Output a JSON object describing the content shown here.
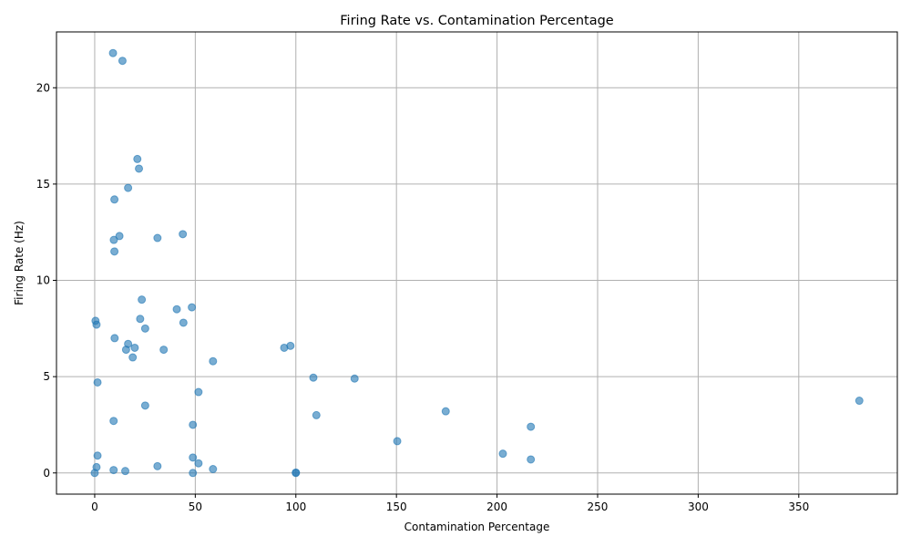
{
  "chart_data": {
    "type": "scatter",
    "title": "Firing Rate vs. Contamination Percentage",
    "xlabel": "Contamination Percentage",
    "ylabel": "Firing Rate (Hz)",
    "xlim": [
      -19,
      399
    ],
    "ylim": [
      -1.1,
      22.9
    ],
    "xticks": [
      0,
      50,
      100,
      150,
      200,
      250,
      300,
      350
    ],
    "yticks": [
      0,
      5,
      10,
      15,
      20
    ],
    "grid": true,
    "color": "#1f77b4",
    "points": [
      [
        9.1,
        21.8
      ],
      [
        13.8,
        21.4
      ],
      [
        21.2,
        16.3
      ],
      [
        22.0,
        15.8
      ],
      [
        16.6,
        14.8
      ],
      [
        9.8,
        14.2
      ],
      [
        43.8,
        12.4
      ],
      [
        12.3,
        12.3
      ],
      [
        31.2,
        12.2
      ],
      [
        9.5,
        12.1
      ],
      [
        9.8,
        11.5
      ],
      [
        23.4,
        9.0
      ],
      [
        48.3,
        8.6
      ],
      [
        40.8,
        8.5
      ],
      [
        22.6,
        8.0
      ],
      [
        0.4,
        7.9
      ],
      [
        0.9,
        7.7
      ],
      [
        44.1,
        7.8
      ],
      [
        25.1,
        7.5
      ],
      [
        9.9,
        7.0
      ],
      [
        16.6,
        6.7
      ],
      [
        19.9,
        6.5
      ],
      [
        15.6,
        6.4
      ],
      [
        34.3,
        6.4
      ],
      [
        94.2,
        6.5
      ],
      [
        97.3,
        6.6
      ],
      [
        18.9,
        6.0
      ],
      [
        58.8,
        5.8
      ],
      [
        108.7,
        4.95
      ],
      [
        129.2,
        4.9
      ],
      [
        1.4,
        4.7
      ],
      [
        51.6,
        4.2
      ],
      [
        380.1,
        3.75
      ],
      [
        25.1,
        3.5
      ],
      [
        174.5,
        3.2
      ],
      [
        110.2,
        3.0
      ],
      [
        9.4,
        2.7
      ],
      [
        48.8,
        2.5
      ],
      [
        216.8,
        2.4
      ],
      [
        150.4,
        1.65
      ],
      [
        202.9,
        1.0
      ],
      [
        1.4,
        0.9
      ],
      [
        48.8,
        0.8
      ],
      [
        216.8,
        0.7
      ],
      [
        51.6,
        0.5
      ],
      [
        31.2,
        0.35
      ],
      [
        0.9,
        0.3
      ],
      [
        58.8,
        0.2
      ],
      [
        9.4,
        0.15
      ],
      [
        15.2,
        0.1
      ],
      [
        0.0,
        0.0
      ],
      [
        48.8,
        0.0
      ],
      [
        100.0,
        0.0
      ],
      [
        100.0,
        0.02
      ]
    ]
  }
}
